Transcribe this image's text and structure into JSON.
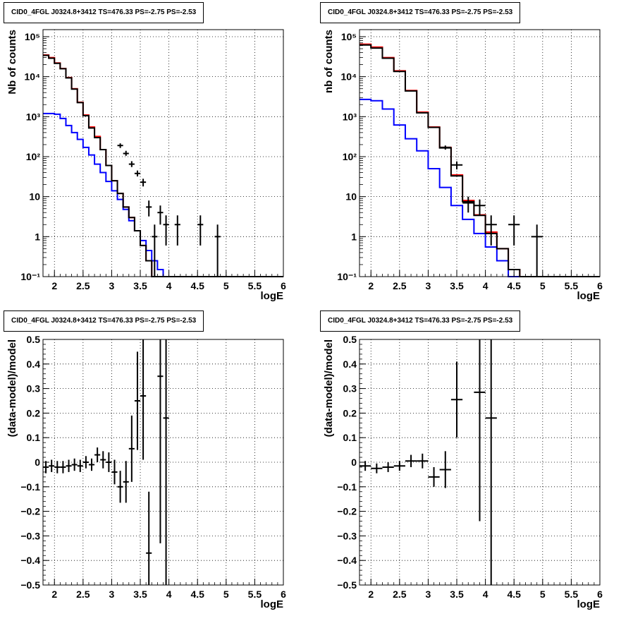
{
  "chart_data": [
    {
      "id": "p1",
      "type": "histogram",
      "title": "CID0_4FGL J0324.8+3412 TS=476.33 PS=-2.75 PS=-2.53",
      "xlabel": "logE",
      "ylabel": "Nb of counts",
      "xlim": [
        1.8,
        6.0
      ],
      "ylim": [
        0.1,
        150000
      ],
      "log_y": true,
      "grid": true,
      "xticks": [
        {
          "v": 2,
          "t": "2"
        },
        {
          "v": 2.5,
          "t": "2.5"
        },
        {
          "v": 3,
          "t": "3"
        },
        {
          "v": 3.5,
          "t": "3.5"
        },
        {
          "v": 4,
          "t": "4"
        },
        {
          "v": 4.5,
          "t": "4.5"
        },
        {
          "v": 5,
          "t": "5"
        },
        {
          "v": 5.5,
          "t": "5.5"
        },
        {
          "v": 6,
          "t": "6"
        }
      ],
      "yticks": [
        {
          "v": 0.1,
          "t": "10⁻¹"
        },
        {
          "v": 1,
          "t": "1"
        },
        {
          "v": 10,
          "t": "10"
        },
        {
          "v": 100,
          "t": "10²"
        },
        {
          "v": 1000,
          "t": "10³"
        },
        {
          "v": 10000,
          "t": "10⁴"
        },
        {
          "v": 100000,
          "t": "10⁵"
        }
      ],
      "series": [
        {
          "color": "#ff0000",
          "edges": [
            1.8,
            1.9,
            2.0,
            2.1,
            2.2,
            2.3,
            2.4,
            2.5,
            2.6,
            2.7,
            2.8,
            2.9,
            3.0,
            3.1,
            3.2,
            3.3,
            3.4,
            3.5,
            3.6,
            3.7,
            3.8,
            3.9,
            4.0,
            4.1,
            4.2,
            4.3,
            4.4,
            4.5,
            4.6,
            4.7,
            6.0
          ],
          "values": [
            35000,
            30000,
            22000,
            16000,
            9500,
            5000,
            2300,
            1100,
            550,
            320,
            150,
            60,
            25,
            12,
            5.5,
            3,
            1.4,
            0.6,
            0.25,
            0.1,
            0.1,
            0.1,
            0.1,
            0.1,
            0.1,
            0.1,
            0.1,
            0.1,
            0.1,
            0.1
          ]
        },
        {
          "color": "#0000ff",
          "edges": [
            1.8,
            1.9,
            2.0,
            2.1,
            2.2,
            2.3,
            2.4,
            2.5,
            2.6,
            2.7,
            2.8,
            2.9,
            3.0,
            3.1,
            3.2,
            3.3,
            3.4,
            3.5,
            3.6,
            3.7,
            3.8,
            3.9,
            4.0,
            4.1,
            4.2,
            4.3,
            4.4,
            4.5,
            4.6,
            4.7,
            6.0
          ],
          "values": [
            1200,
            1200,
            1150,
            900,
            600,
            400,
            270,
            170,
            110,
            65,
            40,
            24,
            14,
            8.5,
            4.8,
            2.5,
            1.4,
            0.8,
            0.45,
            0.25,
            0.15,
            0.1,
            0.1,
            0.1,
            0.1,
            0.1,
            0.1,
            0.1,
            0.1,
            0.1
          ]
        },
        {
          "color": "#000000",
          "edges": [
            1.8,
            1.9,
            2.0,
            2.1,
            2.2,
            2.3,
            2.4,
            2.5,
            2.6,
            2.7,
            2.8,
            2.9,
            3.0,
            3.1,
            3.2,
            3.3,
            3.4,
            3.5,
            3.6,
            3.7,
            3.8,
            3.9,
            4.0,
            4.1,
            4.2,
            4.3,
            4.4,
            4.5,
            4.6,
            4.7,
            6.0
          ],
          "values": [
            34000,
            29000,
            21500,
            15800,
            9300,
            4900,
            2250,
            1060,
            520,
            300,
            150,
            60,
            25,
            12,
            5.5,
            3,
            1.4,
            0.6,
            0.25,
            0.1,
            0.1,
            0.1,
            0.1,
            0.1,
            0.1,
            0.1,
            0.1,
            0.1,
            0.1,
            0.1
          ]
        }
      ],
      "points": [
        {
          "x": 3.15,
          "y": 190,
          "xerr": 0.05,
          "ylo": 165,
          "yhi": 215
        },
        {
          "x": 3.25,
          "y": 120,
          "xerr": 0.05,
          "ylo": 105,
          "yhi": 140
        },
        {
          "x": 3.35,
          "y": 65,
          "xerr": 0.05,
          "ylo": 55,
          "yhi": 77
        },
        {
          "x": 3.45,
          "y": 38,
          "xerr": 0.05,
          "ylo": 32,
          "yhi": 45
        },
        {
          "x": 3.55,
          "y": 23,
          "xerr": 0.05,
          "ylo": 18,
          "yhi": 28
        },
        {
          "x": 3.65,
          "y": 5.5,
          "xerr": 0.05,
          "ylo": 3.2,
          "yhi": 8
        },
        {
          "x": 3.75,
          "y": 1,
          "xerr": 0.05,
          "ylo": 0.1,
          "yhi": 2
        },
        {
          "x": 3.85,
          "y": 4,
          "xerr": 0.05,
          "ylo": 2,
          "yhi": 6
        },
        {
          "x": 3.95,
          "y": 2,
          "xerr": 0.05,
          "ylo": 0.6,
          "yhi": 3.4
        },
        {
          "x": 4.15,
          "y": 2,
          "xerr": 0.05,
          "ylo": 0.6,
          "yhi": 3.4
        },
        {
          "x": 4.55,
          "y": 2,
          "xerr": 0.05,
          "ylo": 0.6,
          "yhi": 3.4
        },
        {
          "x": 4.85,
          "y": 1,
          "xerr": 0.05,
          "ylo": 0.1,
          "yhi": 2
        }
      ]
    },
    {
      "id": "p2",
      "type": "histogram",
      "title": "CID0_4FGL J0324.8+3412 TS=476.33 PS=-2.75 PS=-2.53",
      "xlabel": "logE",
      "ylabel": "nb of counts",
      "xlim": [
        1.8,
        6.0
      ],
      "ylim": [
        0.1,
        150000
      ],
      "log_y": true,
      "grid": true,
      "xticks": [
        {
          "v": 2,
          "t": "2"
        },
        {
          "v": 2.5,
          "t": "2.5"
        },
        {
          "v": 3,
          "t": "3"
        },
        {
          "v": 3.5,
          "t": "3.5"
        },
        {
          "v": 4,
          "t": "4"
        },
        {
          "v": 4.5,
          "t": "4.5"
        },
        {
          "v": 5,
          "t": "5"
        },
        {
          "v": 5.5,
          "t": "5.5"
        },
        {
          "v": 6,
          "t": "6"
        }
      ],
      "yticks": [
        {
          "v": 0.1,
          "t": "10⁻¹"
        },
        {
          "v": 1,
          "t": "1"
        },
        {
          "v": 10,
          "t": "10"
        },
        {
          "v": 100,
          "t": "10²"
        },
        {
          "v": 1000,
          "t": "10³"
        },
        {
          "v": 10000,
          "t": "10⁴"
        },
        {
          "v": 100000,
          "t": "10⁵"
        }
      ],
      "series": [
        {
          "color": "#ff0000",
          "edges": [
            1.8,
            2.0,
            2.2,
            2.4,
            2.6,
            2.8,
            3.0,
            3.2,
            3.4,
            3.6,
            3.8,
            4.0,
            4.2,
            4.4,
            4.6,
            6.0
          ],
          "values": [
            65000,
            55000,
            30000,
            14000,
            4500,
            1300,
            550,
            170,
            35,
            8,
            3.5,
            1.3,
            0.5,
            0.15,
            0.1
          ]
        },
        {
          "color": "#0000ff",
          "edges": [
            1.8,
            2.0,
            2.2,
            2.4,
            2.6,
            2.8,
            3.0,
            3.2,
            3.4,
            3.6,
            3.8,
            4.0,
            4.2,
            4.4,
            4.6,
            6.0
          ],
          "values": [
            2700,
            2500,
            1550,
            620,
            280,
            140,
            50,
            17,
            6,
            2.7,
            1.2,
            0.55,
            0.25,
            0.1,
            0.1
          ]
        },
        {
          "color": "#000000",
          "edges": [
            1.8,
            2.0,
            2.2,
            2.4,
            2.6,
            2.8,
            3.0,
            3.2,
            3.4,
            3.6,
            3.8,
            4.0,
            4.2,
            4.4,
            4.6,
            6.0
          ],
          "values": [
            62000,
            52000,
            29000,
            13500,
            4400,
            1250,
            540,
            165,
            33,
            7.5,
            3.4,
            1.2,
            0.5,
            0.15,
            0.1
          ]
        }
      ],
      "points": [
        {
          "x": 3.3,
          "y": 170,
          "xerr": 0.1,
          "ylo": 150,
          "yhi": 190
        },
        {
          "x": 3.5,
          "y": 62,
          "xerr": 0.1,
          "ylo": 48,
          "yhi": 76
        },
        {
          "x": 3.7,
          "y": 7,
          "xerr": 0.1,
          "ylo": 4,
          "yhi": 10
        },
        {
          "x": 3.9,
          "y": 6,
          "xerr": 0.1,
          "ylo": 3.5,
          "yhi": 8.5
        },
        {
          "x": 4.1,
          "y": 2,
          "xerr": 0.1,
          "ylo": 0.6,
          "yhi": 3.4
        },
        {
          "x": 4.5,
          "y": 2,
          "xerr": 0.1,
          "ylo": 0.6,
          "yhi": 3.4
        },
        {
          "x": 4.9,
          "y": 1,
          "xerr": 0.1,
          "ylo": 0.1,
          "yhi": 2
        }
      ]
    },
    {
      "id": "p3",
      "type": "scatter",
      "title": "CID0_4FGL J0324.8+3412 TS=476.33 PS=-2.75 PS=-2.53",
      "xlabel": "logE",
      "ylabel": "(data-model)/model",
      "xlim": [
        1.8,
        6.0
      ],
      "ylim": [
        -0.5,
        0.5
      ],
      "log_y": false,
      "grid": true,
      "xticks": [
        {
          "v": 2,
          "t": "2"
        },
        {
          "v": 2.5,
          "t": "2.5"
        },
        {
          "v": 3,
          "t": "3"
        },
        {
          "v": 3.5,
          "t": "3.5"
        },
        {
          "v": 4,
          "t": "4"
        },
        {
          "v": 4.5,
          "t": "4.5"
        },
        {
          "v": 5,
          "t": "5"
        },
        {
          "v": 5.5,
          "t": "5.5"
        },
        {
          "v": 6,
          "t": "6"
        }
      ],
      "yticks": [
        {
          "v": -0.5,
          "t": "−0.5"
        },
        {
          "v": -0.4,
          "t": "−0.4"
        },
        {
          "v": -0.3,
          "t": "−0.3"
        },
        {
          "v": -0.2,
          "t": "−0.2"
        },
        {
          "v": -0.1,
          "t": "−0.1"
        },
        {
          "v": 0,
          "t": "0"
        },
        {
          "v": 0.1,
          "t": "0.1"
        },
        {
          "v": 0.2,
          "t": "0.2"
        },
        {
          "v": 0.3,
          "t": "0.3"
        },
        {
          "v": 0.4,
          "t": "0.4"
        },
        {
          "v": 0.5,
          "t": "0.5"
        }
      ],
      "series": [],
      "points": [
        {
          "x": 1.85,
          "y": -0.02,
          "xerr": 0.05,
          "ylo": -0.045,
          "yhi": 0.005
        },
        {
          "x": 1.95,
          "y": -0.015,
          "xerr": 0.05,
          "ylo": -0.04,
          "yhi": 0.01
        },
        {
          "x": 2.05,
          "y": -0.02,
          "xerr": 0.05,
          "ylo": -0.045,
          "yhi": 0.005
        },
        {
          "x": 2.15,
          "y": -0.02,
          "xerr": 0.05,
          "ylo": -0.045,
          "yhi": 0.005
        },
        {
          "x": 2.25,
          "y": -0.015,
          "xerr": 0.05,
          "ylo": -0.04,
          "yhi": 0.01
        },
        {
          "x": 2.35,
          "y": -0.01,
          "xerr": 0.05,
          "ylo": -0.035,
          "yhi": 0.015
        },
        {
          "x": 2.45,
          "y": -0.015,
          "xerr": 0.05,
          "ylo": -0.04,
          "yhi": 0.01
        },
        {
          "x": 2.55,
          "y": 0.0,
          "xerr": 0.05,
          "ylo": -0.025,
          "yhi": 0.025
        },
        {
          "x": 2.65,
          "y": -0.01,
          "xerr": 0.05,
          "ylo": -0.035,
          "yhi": 0.015
        },
        {
          "x": 2.75,
          "y": 0.03,
          "xerr": 0.05,
          "ylo": 0.0,
          "yhi": 0.06
        },
        {
          "x": 2.85,
          "y": 0.01,
          "xerr": 0.05,
          "ylo": -0.025,
          "yhi": 0.045
        },
        {
          "x": 2.95,
          "y": 0.0,
          "xerr": 0.05,
          "ylo": -0.04,
          "yhi": 0.04
        },
        {
          "x": 3.05,
          "y": -0.04,
          "xerr": 0.05,
          "ylo": -0.09,
          "yhi": 0.01
        },
        {
          "x": 3.15,
          "y": -0.1,
          "xerr": 0.05,
          "ylo": -0.165,
          "yhi": -0.035
        },
        {
          "x": 3.25,
          "y": -0.08,
          "xerr": 0.05,
          "ylo": -0.165,
          "yhi": 0.005
        },
        {
          "x": 3.35,
          "y": 0.055,
          "xerr": 0.05,
          "ylo": -0.08,
          "yhi": 0.19
        },
        {
          "x": 3.45,
          "y": 0.25,
          "xerr": 0.05,
          "ylo": 0.05,
          "yhi": 0.45
        },
        {
          "x": 3.55,
          "y": 0.27,
          "xerr": 0.05,
          "ylo": 0.01,
          "yhi": 0.5
        },
        {
          "x": 3.65,
          "y": -0.37,
          "xerr": 0.05,
          "ylo": -0.5,
          "yhi": -0.12
        },
        {
          "x": 3.85,
          "y": 0.35,
          "xerr": 0.05,
          "ylo": -0.33,
          "yhi": 0.5
        },
        {
          "x": 3.95,
          "y": 0.18,
          "xerr": 0.05,
          "ylo": -0.5,
          "yhi": 0.5
        }
      ]
    },
    {
      "id": "p4",
      "type": "scatter",
      "title": "CID0_4FGL J0324.8+3412 TS=476.33 PS=-2.75 PS=-2.53",
      "xlabel": "logE",
      "ylabel": "(data-model)/model",
      "xlim": [
        1.8,
        6.0
      ],
      "ylim": [
        -0.5,
        0.5
      ],
      "log_y": false,
      "grid": true,
      "xticks": [
        {
          "v": 2,
          "t": "2"
        },
        {
          "v": 2.5,
          "t": "2.5"
        },
        {
          "v": 3,
          "t": "3"
        },
        {
          "v": 3.5,
          "t": "3.5"
        },
        {
          "v": 4,
          "t": "4"
        },
        {
          "v": 4.5,
          "t": "4.5"
        },
        {
          "v": 5,
          "t": "5"
        },
        {
          "v": 5.5,
          "t": "5.5"
        },
        {
          "v": 6,
          "t": "6"
        }
      ],
      "yticks": [
        {
          "v": -0.5,
          "t": "−0.5"
        },
        {
          "v": -0.4,
          "t": "−0.4"
        },
        {
          "v": -0.3,
          "t": "−0.3"
        },
        {
          "v": -0.2,
          "t": "−0.2"
        },
        {
          "v": -0.1,
          "t": "−0.1"
        },
        {
          "v": 0,
          "t": "0"
        },
        {
          "v": 0.1,
          "t": "0.1"
        },
        {
          "v": 0.2,
          "t": "0.2"
        },
        {
          "v": 0.3,
          "t": "0.3"
        },
        {
          "v": 0.4,
          "t": "0.4"
        },
        {
          "v": 0.5,
          "t": "0.5"
        }
      ],
      "series": [],
      "points": [
        {
          "x": 1.9,
          "y": -0.015,
          "xerr": 0.1,
          "ylo": -0.035,
          "yhi": 0.005
        },
        {
          "x": 2.1,
          "y": -0.025,
          "xerr": 0.1,
          "ylo": -0.045,
          "yhi": -0.005
        },
        {
          "x": 2.3,
          "y": -0.02,
          "xerr": 0.1,
          "ylo": -0.04,
          "yhi": 0.0
        },
        {
          "x": 2.5,
          "y": -0.015,
          "xerr": 0.1,
          "ylo": -0.035,
          "yhi": 0.005
        },
        {
          "x": 2.7,
          "y": 0.005,
          "xerr": 0.1,
          "ylo": -0.02,
          "yhi": 0.03
        },
        {
          "x": 2.9,
          "y": 0.005,
          "xerr": 0.1,
          "ylo": -0.025,
          "yhi": 0.035
        },
        {
          "x": 3.1,
          "y": -0.06,
          "xerr": 0.1,
          "ylo": -0.1,
          "yhi": -0.02
        },
        {
          "x": 3.3,
          "y": -0.03,
          "xerr": 0.1,
          "ylo": -0.105,
          "yhi": 0.045
        },
        {
          "x": 3.5,
          "y": 0.255,
          "xerr": 0.1,
          "ylo": 0.1,
          "yhi": 0.41
        },
        {
          "x": 3.9,
          "y": 0.285,
          "xerr": 0.1,
          "ylo": -0.24,
          "yhi": 0.5
        },
        {
          "x": 4.1,
          "y": 0.18,
          "xerr": 0.1,
          "ylo": -0.5,
          "yhi": 0.5
        }
      ]
    }
  ]
}
